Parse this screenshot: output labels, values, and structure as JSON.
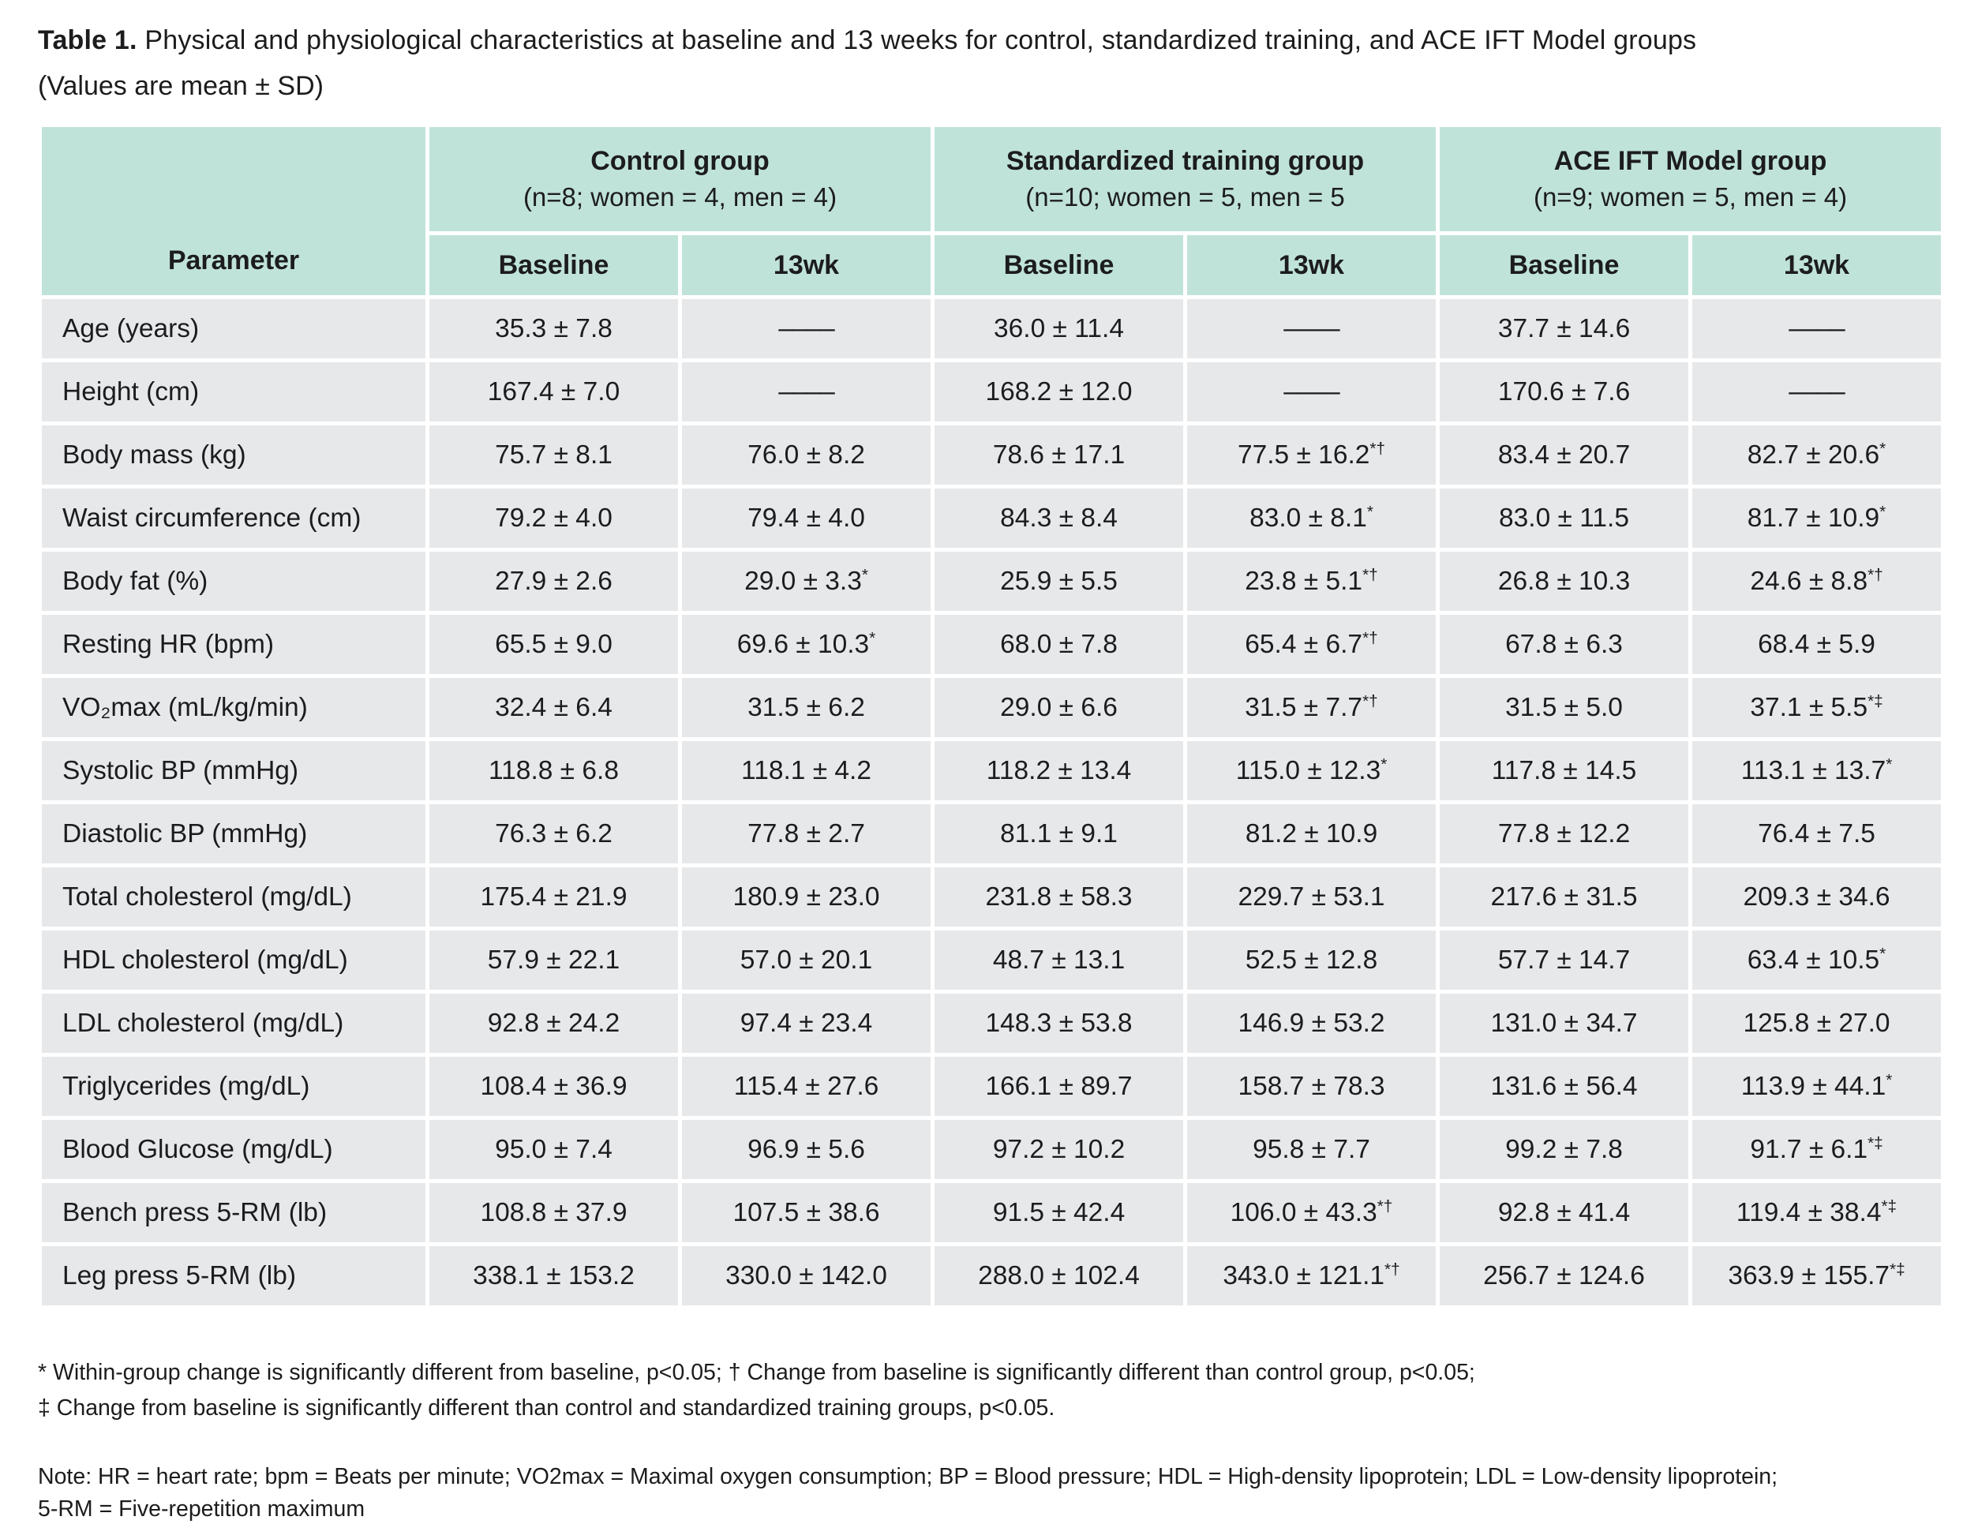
{
  "title": {
    "label": "Table 1.",
    "text": "Physical and physiological characteristics at baseline and 13 weeks for control, standardized training, and ACE IFT Model groups",
    "subtitle": "(Values are mean ± SD)"
  },
  "colors": {
    "header_bg": "#c0e3d9",
    "row_bg": "#e7e8ea",
    "text": "#1c1c1e",
    "page_bg": "#ffffff"
  },
  "table": {
    "corner_label": "Parameter",
    "groups": [
      {
        "name": "Control group",
        "detail": "(n=8; women = 4, men = 4)"
      },
      {
        "name": "Standardized training group",
        "detail": "(n=10; women = 5, men = 5"
      },
      {
        "name": "ACE IFT Model group",
        "detail": "(n=9; women = 5, men = 4)"
      }
    ],
    "subheaders": [
      "Baseline",
      "13wk",
      "Baseline",
      "13wk",
      "Baseline",
      "13wk"
    ],
    "empty_cell_symbol": "––––",
    "rows": [
      {
        "parameter": "Age (years)",
        "values": [
          "35.3 ± 7.8",
          "––––",
          "36.0 ± 11.4",
          "––––",
          "37.7 ± 14.6",
          "––––"
        ]
      },
      {
        "parameter": "Height (cm)",
        "values": [
          "167.4 ± 7.0",
          "––––",
          "168.2 ± 12.0",
          "––––",
          "170.6 ± 7.6",
          "––––"
        ]
      },
      {
        "parameter": "Body mass (kg)",
        "values": [
          "75.7 ± 8.1",
          "76.0 ± 8.2",
          "78.6 ± 17.1",
          "77.5 ± 16.2*†",
          "83.4 ± 20.7",
          "82.7 ± 20.6*"
        ]
      },
      {
        "parameter": "Waist circumference (cm)",
        "values": [
          "79.2 ± 4.0",
          "79.4 ± 4.0",
          "84.3 ± 8.4",
          "83.0 ± 8.1*",
          "83.0 ± 11.5",
          "81.7 ± 10.9*"
        ]
      },
      {
        "parameter": "Body fat (%)",
        "values": [
          "27.9 ± 2.6",
          "29.0 ± 3.3*",
          "25.9 ± 5.5",
          "23.8 ± 5.1*†",
          "26.8 ± 10.3",
          "24.6 ± 8.8*†"
        ]
      },
      {
        "parameter": "Resting HR (bpm)",
        "values": [
          "65.5 ± 9.0",
          "69.6 ± 10.3*",
          "68.0 ± 7.8",
          "65.4 ± 6.7*†",
          "67.8 ± 6.3",
          "68.4 ± 5.9"
        ]
      },
      {
        "parameter": "VO₂max (mL/kg/min)",
        "values": [
          "32.4 ± 6.4",
          "31.5 ± 6.2",
          "29.0 ± 6.6",
          "31.5 ± 7.7*†",
          "31.5 ± 5.0",
          "37.1 ± 5.5*‡"
        ]
      },
      {
        "parameter": "Systolic BP (mmHg)",
        "values": [
          "118.8 ± 6.8",
          "118.1 ± 4.2",
          "118.2 ± 13.4",
          "115.0 ± 12.3*",
          "117.8 ± 14.5",
          "113.1 ± 13.7*"
        ]
      },
      {
        "parameter": "Diastolic BP (mmHg)",
        "values": [
          "76.3 ± 6.2",
          "77.8 ± 2.7",
          "81.1 ± 9.1",
          "81.2 ± 10.9",
          "77.8 ± 12.2",
          "76.4 ± 7.5"
        ]
      },
      {
        "parameter": "Total cholesterol (mg/dL)",
        "values": [
          "175.4 ± 21.9",
          "180.9 ± 23.0",
          "231.8 ± 58.3",
          "229.7 ± 53.1",
          "217.6 ± 31.5",
          "209.3 ± 34.6"
        ]
      },
      {
        "parameter": "HDL cholesterol (mg/dL)",
        "values": [
          "57.9 ± 22.1",
          "57.0 ± 20.1",
          "48.7 ± 13.1",
          "52.5 ± 12.8",
          "57.7 ± 14.7",
          "63.4 ± 10.5*"
        ]
      },
      {
        "parameter": "LDL cholesterol (mg/dL)",
        "values": [
          "92.8 ± 24.2",
          "97.4 ± 23.4",
          "148.3 ± 53.8",
          "146.9 ± 53.2",
          "131.0 ± 34.7",
          "125.8 ± 27.0"
        ]
      },
      {
        "parameter": "Triglycerides (mg/dL)",
        "values": [
          "108.4 ± 36.9",
          "115.4 ± 27.6",
          "166.1 ± 89.7",
          "158.7 ± 78.3",
          "131.6 ± 56.4",
          "113.9 ± 44.1*"
        ]
      },
      {
        "parameter": "Blood Glucose (mg/dL)",
        "values": [
          "95.0 ± 7.4",
          "96.9 ± 5.6",
          "97.2 ± 10.2",
          "95.8 ± 7.7",
          "99.2 ± 7.8",
          "91.7 ± 6.1*‡"
        ]
      },
      {
        "parameter": "Bench press 5-RM (lb)",
        "values": [
          "108.8 ± 37.9",
          "107.5 ± 38.6",
          "91.5 ± 42.4",
          "106.0 ± 43.3*†",
          "92.8 ± 41.4",
          "119.4 ± 38.4*‡"
        ]
      },
      {
        "parameter": "Leg press 5-RM (lb)",
        "values": [
          "338.1 ± 153.2",
          "330.0 ± 142.0",
          "288.0 ± 102.4",
          "343.0 ± 121.1*†",
          "256.7 ± 124.6",
          "363.9 ± 155.7*‡"
        ]
      }
    ]
  },
  "footnotes": [
    "* Within-group change is significantly different from baseline, p<0.05; † Change from baseline is significantly different than control group, p<0.05;",
    "‡ Change from baseline is significantly different than control and standardized training groups, p<0.05."
  ],
  "notes": [
    "Note: HR = heart rate; bpm = Beats per minute; VO2max = Maximal oxygen consumption; BP = Blood pressure; HDL = High-density lipoprotein; LDL = Low-density lipoprotein;",
    "5-RM = Five-repetition maximum"
  ]
}
